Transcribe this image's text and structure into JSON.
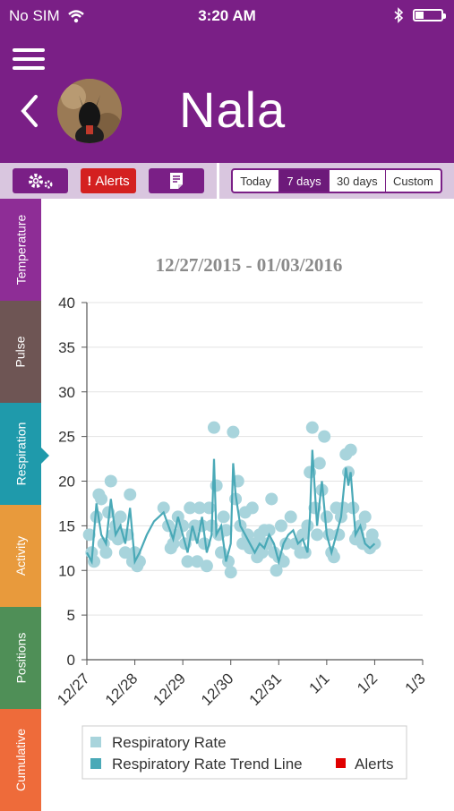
{
  "status_bar": {
    "carrier": "No SIM",
    "time": "3:20 AM"
  },
  "header": {
    "title": "Nala"
  },
  "toolbar": {
    "alerts_label": "Alerts",
    "ranges": [
      "Today",
      "7 days",
      "30 days",
      "Custom"
    ],
    "active_range": "7 days"
  },
  "sidebar": {
    "tabs": [
      {
        "label": "Temperature",
        "color": "#8e2d96"
      },
      {
        "label": "Pulse",
        "color": "#6e5554"
      },
      {
        "label": "Respiration",
        "color": "#1f9aab"
      },
      {
        "label": "Activity",
        "color": "#e89a3c"
      },
      {
        "label": "Positions",
        "color": "#4f8f57"
      },
      {
        "label": "Cumulative",
        "color": "#ee6b3a"
      }
    ],
    "active": "Respiration"
  },
  "colors": {
    "brand": "#7a1f86",
    "alert": "#d42020",
    "points": "#a8d4dc",
    "trend": "#4aa9b7"
  },
  "chart_data": {
    "type": "scatter",
    "title": "12/27/2015 - 01/03/2016",
    "ylim": [
      0,
      40
    ],
    "yticks": [
      0,
      5,
      10,
      15,
      20,
      25,
      30,
      35,
      40
    ],
    "xlim": [
      0,
      7
    ],
    "xticks": [
      "12/27",
      "12/28",
      "12/29",
      "12/30",
      "12/31",
      "1/1",
      "1/2",
      "1/3"
    ],
    "legend": [
      "Respiratory Rate",
      "Respiratory Rate Trend Line",
      "Alerts"
    ],
    "series": [
      {
        "name": "Respiratory Rate",
        "points": [
          [
            0.05,
            14
          ],
          [
            0.1,
            12
          ],
          [
            0.15,
            11
          ],
          [
            0.2,
            16
          ],
          [
            0.25,
            18.5
          ],
          [
            0.3,
            18
          ],
          [
            0.35,
            13
          ],
          [
            0.4,
            12
          ],
          [
            0.45,
            16.5
          ],
          [
            0.5,
            20
          ],
          [
            0.55,
            14
          ],
          [
            0.6,
            15
          ],
          [
            0.65,
            13.5
          ],
          [
            0.7,
            16
          ],
          [
            0.75,
            14
          ],
          [
            0.8,
            12
          ],
          [
            0.85,
            14
          ],
          [
            0.9,
            18.5
          ],
          [
            0.95,
            11
          ],
          [
            1.0,
            12
          ],
          [
            1.05,
            10.5
          ],
          [
            1.1,
            11
          ],
          [
            1.6,
            17
          ],
          [
            1.7,
            15
          ],
          [
            1.75,
            12.5
          ],
          [
            1.8,
            13
          ],
          [
            1.85,
            14
          ],
          [
            1.9,
            16
          ],
          [
            2.0,
            15
          ],
          [
            2.05,
            13
          ],
          [
            2.1,
            11
          ],
          [
            2.15,
            17
          ],
          [
            2.2,
            14
          ],
          [
            2.25,
            15
          ],
          [
            2.3,
            11
          ],
          [
            2.35,
            17
          ],
          [
            2.4,
            15
          ],
          [
            2.45,
            13
          ],
          [
            2.5,
            10.5
          ],
          [
            2.55,
            17
          ],
          [
            2.6,
            15
          ],
          [
            2.65,
            26
          ],
          [
            2.7,
            19.5
          ],
          [
            2.75,
            14
          ],
          [
            2.8,
            12
          ],
          [
            2.85,
            16
          ],
          [
            2.9,
            14.5
          ],
          [
            2.95,
            11
          ],
          [
            3.0,
            9.8
          ],
          [
            3.05,
            25.5
          ],
          [
            3.1,
            18
          ],
          [
            3.15,
            20
          ],
          [
            3.2,
            15
          ],
          [
            3.25,
            13
          ],
          [
            3.3,
            16.5
          ],
          [
            3.35,
            14
          ],
          [
            3.4,
            12.5
          ],
          [
            3.45,
            17
          ],
          [
            3.5,
            13
          ],
          [
            3.55,
            11.5
          ],
          [
            3.6,
            14
          ],
          [
            3.65,
            12
          ],
          [
            3.7,
            14.5
          ],
          [
            3.75,
            13
          ],
          [
            3.8,
            14.5
          ],
          [
            3.85,
            18
          ],
          [
            3.9,
            12
          ],
          [
            3.95,
            10
          ],
          [
            4.0,
            11.5
          ],
          [
            4.05,
            15
          ],
          [
            4.1,
            11
          ],
          [
            4.15,
            13
          ],
          [
            4.25,
            16
          ],
          [
            4.35,
            13
          ],
          [
            4.45,
            12
          ],
          [
            4.5,
            14
          ],
          [
            4.55,
            12
          ],
          [
            4.6,
            15
          ],
          [
            4.65,
            21
          ],
          [
            4.7,
            26
          ],
          [
            4.75,
            17
          ],
          [
            4.8,
            14
          ],
          [
            4.85,
            22
          ],
          [
            4.9,
            19
          ],
          [
            4.95,
            25
          ],
          [
            5.0,
            16
          ],
          [
            5.05,
            14
          ],
          [
            5.1,
            12
          ],
          [
            5.15,
            11.5
          ],
          [
            5.2,
            17
          ],
          [
            5.25,
            14
          ],
          [
            5.3,
            16
          ],
          [
            5.35,
            17
          ],
          [
            5.4,
            23
          ],
          [
            5.45,
            21
          ],
          [
            5.5,
            23.5
          ],
          [
            5.55,
            17
          ],
          [
            5.6,
            13.5
          ],
          [
            5.65,
            14
          ],
          [
            5.7,
            15
          ],
          [
            5.75,
            13
          ],
          [
            5.8,
            16
          ],
          [
            5.85,
            13
          ],
          [
            5.9,
            12.5
          ],
          [
            5.95,
            14
          ],
          [
            6.0,
            13
          ]
        ]
      },
      {
        "name": "Respiratory Rate Trend Line",
        "points": [
          [
            0.0,
            12
          ],
          [
            0.1,
            11
          ],
          [
            0.2,
            17.5
          ],
          [
            0.3,
            14
          ],
          [
            0.4,
            13
          ],
          [
            0.5,
            18
          ],
          [
            0.6,
            14
          ],
          [
            0.7,
            15
          ],
          [
            0.8,
            13
          ],
          [
            0.9,
            17
          ],
          [
            1.0,
            11
          ],
          [
            1.1,
            12
          ],
          [
            1.25,
            14
          ],
          [
            1.4,
            15.5
          ],
          [
            1.5,
            16
          ],
          [
            1.6,
            16.5
          ],
          [
            1.7,
            15
          ],
          [
            1.8,
            13.5
          ],
          [
            1.9,
            16
          ],
          [
            2.0,
            14
          ],
          [
            2.1,
            12
          ],
          [
            2.2,
            15
          ],
          [
            2.3,
            13
          ],
          [
            2.4,
            16
          ],
          [
            2.5,
            12
          ],
          [
            2.6,
            14
          ],
          [
            2.65,
            22.5
          ],
          [
            2.7,
            14
          ],
          [
            2.8,
            15
          ],
          [
            2.9,
            11
          ],
          [
            3.0,
            13
          ],
          [
            3.05,
            22
          ],
          [
            3.1,
            18.5
          ],
          [
            3.2,
            15
          ],
          [
            3.3,
            14
          ],
          [
            3.4,
            13
          ],
          [
            3.5,
            12
          ],
          [
            3.6,
            13
          ],
          [
            3.7,
            12.5
          ],
          [
            3.8,
            14
          ],
          [
            3.9,
            13
          ],
          [
            4.0,
            11
          ],
          [
            4.1,
            13
          ],
          [
            4.2,
            14
          ],
          [
            4.3,
            14.5
          ],
          [
            4.4,
            13
          ],
          [
            4.5,
            13.5
          ],
          [
            4.6,
            12
          ],
          [
            4.65,
            16
          ],
          [
            4.7,
            23.5
          ],
          [
            4.8,
            15
          ],
          [
            4.9,
            20
          ],
          [
            5.0,
            14
          ],
          [
            5.1,
            12
          ],
          [
            5.2,
            14
          ],
          [
            5.3,
            16
          ],
          [
            5.4,
            21.5
          ],
          [
            5.45,
            19.5
          ],
          [
            5.5,
            21
          ],
          [
            5.6,
            14
          ],
          [
            5.7,
            15
          ],
          [
            5.8,
            13
          ],
          [
            5.9,
            12.5
          ],
          [
            6.0,
            13
          ]
        ]
      }
    ]
  }
}
